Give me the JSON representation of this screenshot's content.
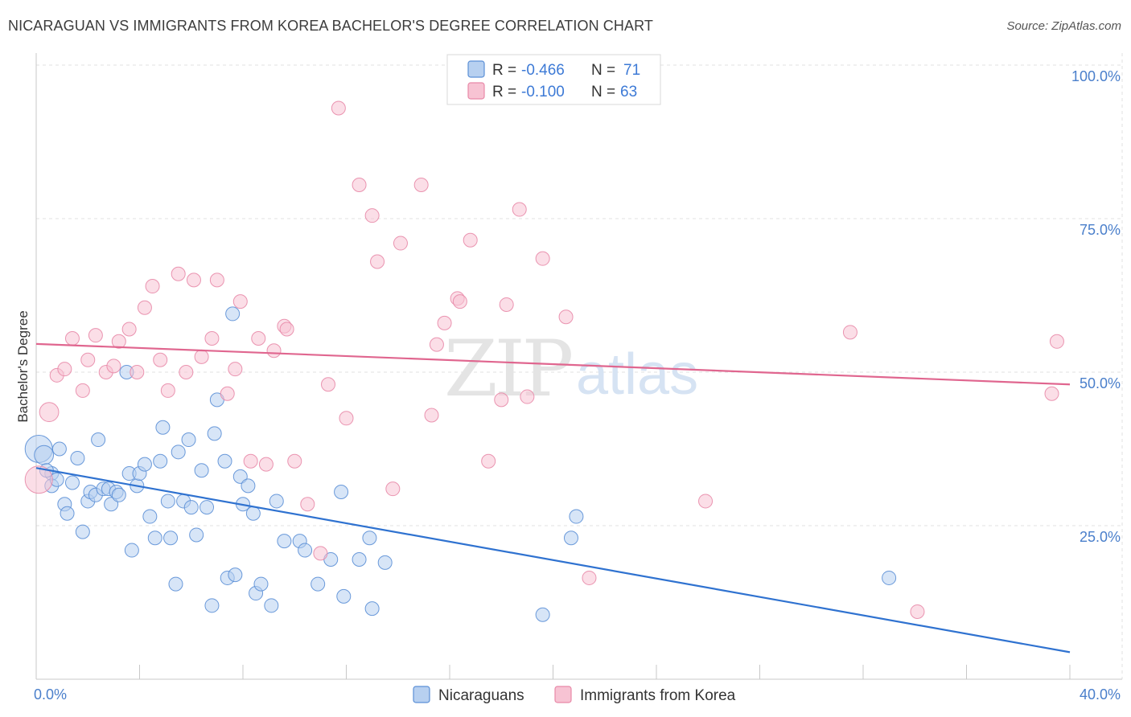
{
  "header": {
    "title": "NICARAGUAN VS IMMIGRANTS FROM KOREA BACHELOR'S DEGREE CORRELATION CHART",
    "source": "Source: ZipAtlas.com"
  },
  "watermark": {
    "zip": "ZIP",
    "atlas": "atlas"
  },
  "legend_top": {
    "rows": [
      {
        "r_label": "R = ",
        "r_value": "-0.466",
        "n_label": "N = ",
        "n_value": "71",
        "color": "#a9c8ee"
      },
      {
        "r_label": "R = ",
        "r_value": "-0.100",
        "n_label": "N = ",
        "n_value": "63",
        "color": "#f6b9cb"
      }
    ]
  },
  "chart_data": {
    "type": "scatter",
    "title": "NICARAGUAN VS IMMIGRANTS FROM KOREA BACHELOR'S DEGREE CORRELATION CHART",
    "xlabel": "",
    "ylabel": "Bachelor's Degree",
    "xlim": [
      0,
      40
    ],
    "ylim": [
      0,
      100
    ],
    "x_tick_labels": [
      "0.0%",
      "40.0%"
    ],
    "y_ticks": [
      25,
      50,
      75,
      100
    ],
    "y_tick_labels": [
      "25.0%",
      "50.0%",
      "75.0%",
      "100.0%"
    ],
    "grid": true,
    "legend_position": "bottom-center",
    "series": [
      {
        "name": "Nicaraguans",
        "color": "#5b8fd6",
        "fill": "#b7d0f0",
        "trend": {
          "x": [
            0,
            40
          ],
          "y": [
            34.4,
            4.4
          ],
          "color": "#2f72d0"
        },
        "points": [
          [
            0.1,
            37.5,
            2
          ],
          [
            0.3,
            36.5,
            1.4
          ],
          [
            0.6,
            33.5,
            1
          ],
          [
            0.6,
            31.5,
            1
          ],
          [
            0.8,
            32.5,
            1
          ],
          [
            0.9,
            37.5,
            1
          ],
          [
            1.1,
            28.5,
            1
          ],
          [
            1.2,
            27.0,
            1
          ],
          [
            1.4,
            32.0,
            1
          ],
          [
            1.6,
            36.0,
            1
          ],
          [
            1.8,
            24.0,
            1
          ],
          [
            2.0,
            29.0,
            1
          ],
          [
            2.1,
            30.5,
            1
          ],
          [
            2.3,
            30.0,
            1
          ],
          [
            2.4,
            39.0,
            1
          ],
          [
            2.6,
            31.0,
            1
          ],
          [
            2.8,
            31.0,
            1
          ],
          [
            2.9,
            28.5,
            1
          ],
          [
            3.1,
            30.5,
            1
          ],
          [
            3.2,
            30.0,
            1
          ],
          [
            3.5,
            50.0,
            1
          ],
          [
            3.6,
            33.5,
            1
          ],
          [
            3.7,
            21.0,
            1
          ],
          [
            3.9,
            31.5,
            1
          ],
          [
            4.0,
            33.5,
            1
          ],
          [
            4.2,
            35.0,
            1
          ],
          [
            4.4,
            26.5,
            1
          ],
          [
            4.6,
            23.0,
            1
          ],
          [
            4.8,
            35.5,
            1
          ],
          [
            4.9,
            41.0,
            1
          ],
          [
            5.1,
            29.0,
            1
          ],
          [
            5.2,
            23.0,
            1
          ],
          [
            5.4,
            15.5,
            1
          ],
          [
            5.5,
            37.0,
            1
          ],
          [
            5.7,
            29.0,
            1
          ],
          [
            5.9,
            39.0,
            1
          ],
          [
            6.0,
            28.0,
            1
          ],
          [
            6.2,
            23.5,
            1
          ],
          [
            6.4,
            34.0,
            1
          ],
          [
            6.6,
            28.0,
            1
          ],
          [
            6.8,
            12.0,
            1
          ],
          [
            6.9,
            40.0,
            1
          ],
          [
            7.0,
            45.5,
            1
          ],
          [
            7.3,
            35.5,
            1
          ],
          [
            7.4,
            16.5,
            1
          ],
          [
            7.6,
            59.5,
            1
          ],
          [
            7.7,
            17.0,
            1
          ],
          [
            7.9,
            33.0,
            1
          ],
          [
            8.0,
            28.5,
            1
          ],
          [
            8.2,
            31.5,
            1
          ],
          [
            8.4,
            27.0,
            1
          ],
          [
            8.5,
            14.0,
            1
          ],
          [
            8.7,
            15.5,
            1
          ],
          [
            9.1,
            12.0,
            1
          ],
          [
            9.3,
            29.0,
            1
          ],
          [
            9.6,
            22.5,
            1
          ],
          [
            10.2,
            22.5,
            1
          ],
          [
            10.4,
            21.0,
            1
          ],
          [
            10.9,
            15.5,
            1
          ],
          [
            11.4,
            19.5,
            1
          ],
          [
            11.8,
            30.5,
            1
          ],
          [
            11.9,
            13.5,
            1
          ],
          [
            12.5,
            19.5,
            1
          ],
          [
            12.9,
            23.0,
            1
          ],
          [
            13.0,
            11.5,
            1
          ],
          [
            13.5,
            19.0,
            1
          ],
          [
            19.6,
            10.5,
            1
          ],
          [
            20.7,
            23.0,
            1
          ],
          [
            20.9,
            26.5,
            1
          ],
          [
            33.0,
            16.5,
            1
          ],
          [
            0.4,
            34.0,
            1
          ]
        ]
      },
      {
        "name": "Immigrants from Korea",
        "color": "#e889a8",
        "fill": "#f7c3d3",
        "trend": {
          "x": [
            0,
            40
          ],
          "y": [
            54.6,
            48.0
          ],
          "color": "#e0668f"
        },
        "points": [
          [
            0.1,
            32.5,
            2
          ],
          [
            0.5,
            43.5,
            1.4
          ],
          [
            0.8,
            49.5,
            1
          ],
          [
            1.1,
            50.5,
            1
          ],
          [
            1.4,
            55.5,
            1
          ],
          [
            1.8,
            47.0,
            1
          ],
          [
            2.0,
            52.0,
            1
          ],
          [
            2.3,
            56.0,
            1
          ],
          [
            2.7,
            50.0,
            1
          ],
          [
            3.0,
            51.0,
            1
          ],
          [
            3.2,
            55.0,
            1
          ],
          [
            3.6,
            57.0,
            1
          ],
          [
            3.9,
            50.0,
            1
          ],
          [
            4.2,
            60.5,
            1
          ],
          [
            4.5,
            64.0,
            1
          ],
          [
            4.8,
            52.0,
            1
          ],
          [
            5.1,
            47.0,
            1
          ],
          [
            5.5,
            66.0,
            1
          ],
          [
            5.8,
            50.0,
            1
          ],
          [
            6.1,
            65.0,
            1
          ],
          [
            6.4,
            52.5,
            1
          ],
          [
            6.8,
            55.5,
            1
          ],
          [
            7.0,
            65.0,
            1
          ],
          [
            7.4,
            46.5,
            1
          ],
          [
            7.7,
            50.5,
            1
          ],
          [
            7.9,
            61.5,
            1
          ],
          [
            8.3,
            35.5,
            1
          ],
          [
            8.6,
            55.5,
            1
          ],
          [
            8.9,
            35.0,
            1
          ],
          [
            9.2,
            53.5,
            1
          ],
          [
            9.6,
            57.5,
            1
          ],
          [
            9.7,
            57.0,
            1
          ],
          [
            10.0,
            35.5,
            1
          ],
          [
            10.5,
            28.5,
            1
          ],
          [
            11.0,
            20.5,
            1
          ],
          [
            11.3,
            48.0,
            1
          ],
          [
            11.7,
            93.0,
            1
          ],
          [
            12.0,
            42.5,
            1
          ],
          [
            12.5,
            80.5,
            1
          ],
          [
            13.0,
            75.5,
            1
          ],
          [
            13.2,
            68.0,
            1
          ],
          [
            13.8,
            31.0,
            1
          ],
          [
            14.1,
            71.0,
            1
          ],
          [
            14.9,
            80.5,
            1
          ],
          [
            15.3,
            43.0,
            1
          ],
          [
            15.5,
            54.5,
            1
          ],
          [
            15.8,
            58.0,
            1
          ],
          [
            16.3,
            62.0,
            1
          ],
          [
            16.4,
            61.5,
            1
          ],
          [
            16.8,
            71.5,
            1
          ],
          [
            17.5,
            35.5,
            1
          ],
          [
            18.0,
            45.5,
            1
          ],
          [
            18.2,
            61.0,
            1
          ],
          [
            18.7,
            76.5,
            1
          ],
          [
            19.0,
            46.0,
            1
          ],
          [
            19.6,
            68.5,
            1
          ],
          [
            20.5,
            59.0,
            1
          ],
          [
            21.4,
            16.5,
            1
          ],
          [
            25.9,
            29.0,
            1
          ],
          [
            31.5,
            56.5,
            1
          ],
          [
            34.1,
            11.0,
            1
          ],
          [
            39.3,
            46.5,
            1
          ],
          [
            39.5,
            55.0,
            1
          ]
        ]
      }
    ]
  }
}
